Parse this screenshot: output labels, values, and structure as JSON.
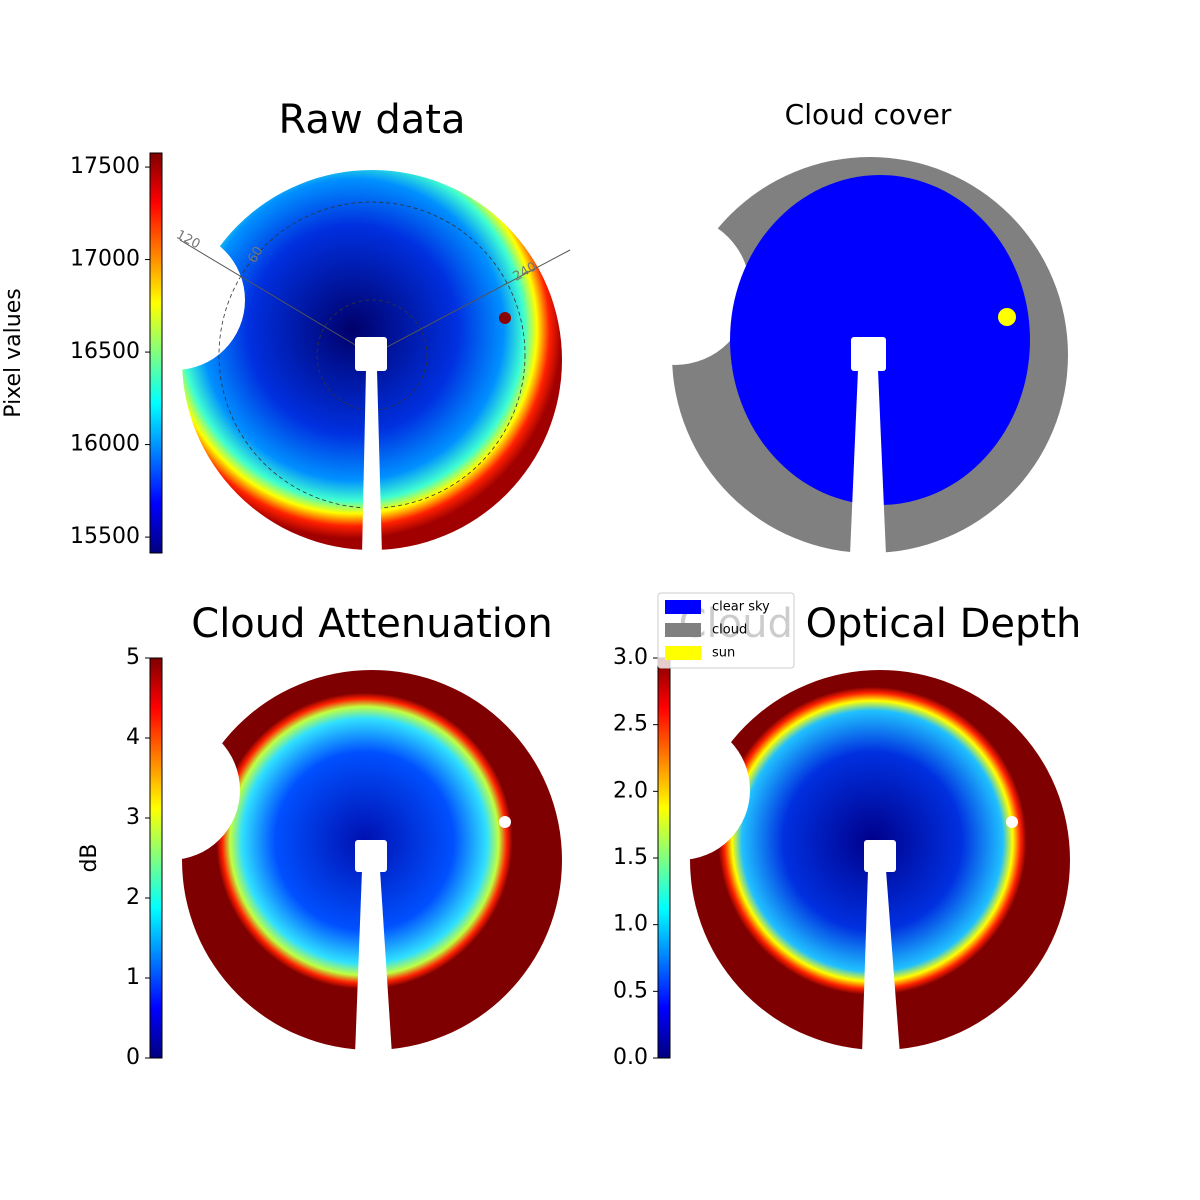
{
  "panels": [
    {
      "title": "Raw data",
      "polar_labels": [
        "120",
        "60",
        "240"
      ],
      "colorbar": {
        "label": "Pixel values",
        "lim": [
          15414,
          17576
        ],
        "ticks": [
          15500,
          16000,
          16500,
          17000,
          17500
        ]
      }
    },
    {
      "title": "Cloud cover",
      "legend": [
        {
          "name": "clear sky",
          "color": "#0000ff"
        },
        {
          "name": "cloud",
          "color": "#808080"
        },
        {
          "name": "sun",
          "color": "#ffff00"
        }
      ]
    },
    {
      "title": "Cloud Attenuation",
      "colorbar": {
        "label": "dB",
        "lim": [
          0,
          5
        ],
        "ticks": [
          0,
          1,
          2,
          3,
          4,
          5
        ]
      }
    },
    {
      "title": "Cloud Optical Depth",
      "colorbar": {
        "lim": [
          0,
          3
        ],
        "ticks": [
          {
            "value": 0,
            "label": "0.0"
          },
          {
            "value": 0.5,
            "label": "0.5"
          },
          {
            "value": 1,
            "label": "1.0"
          },
          {
            "value": 1.5,
            "label": "1.5"
          },
          {
            "value": 2,
            "label": "2.0"
          },
          {
            "value": 2.5,
            "label": "2.5"
          },
          {
            "value": 3,
            "label": "3.0"
          }
        ]
      }
    }
  ]
}
